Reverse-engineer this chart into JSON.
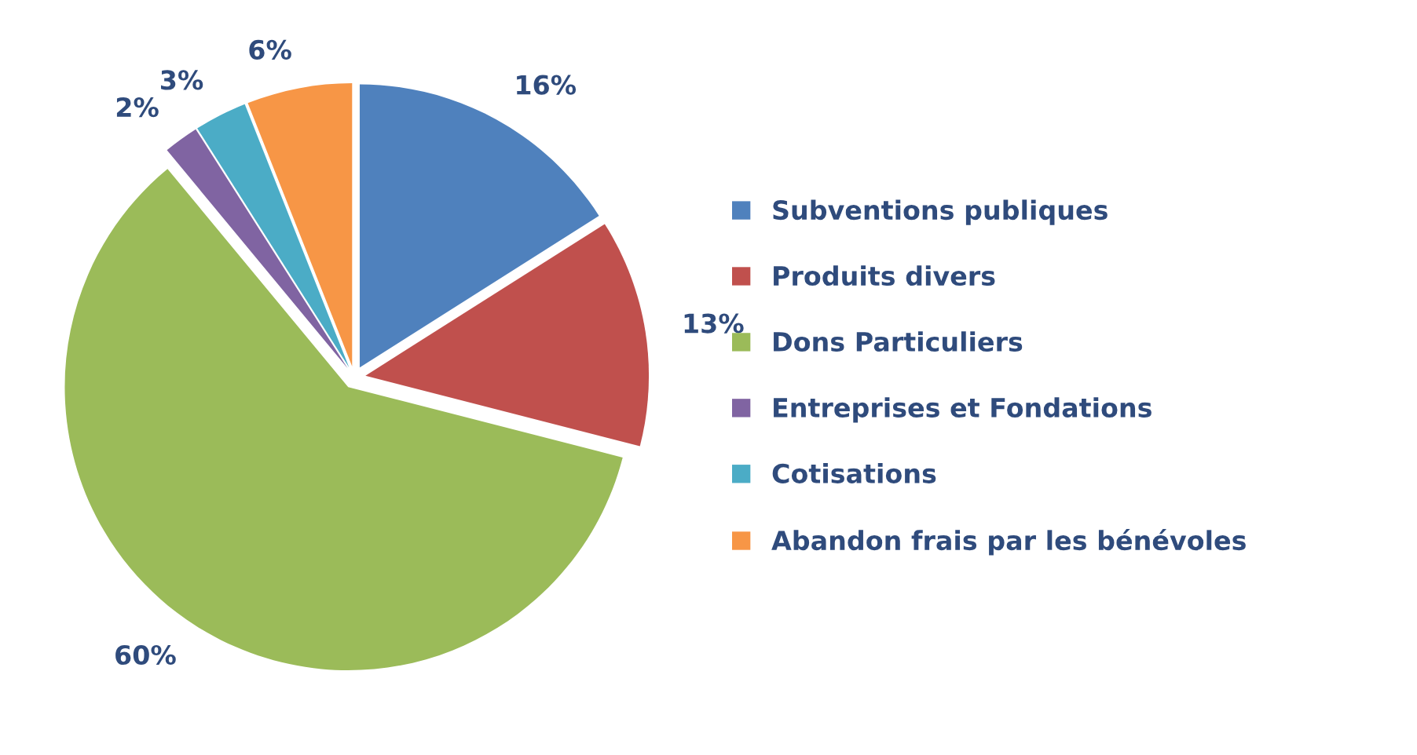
{
  "chart_data": {
    "type": "pie",
    "categories": [
      "Subventions publiques",
      "Produits divers",
      "Dons Particuliers",
      "Entreprises et Fondations",
      "Cotisations",
      "Abandon frais par les bénévoles"
    ],
    "values": [
      16,
      13,
      60,
      2,
      3,
      6
    ],
    "colors": [
      "#4f81bd",
      "#c0504d",
      "#9bbb59",
      "#8064a2",
      "#4bacc6",
      "#f79646"
    ],
    "value_labels": [
      "16%",
      "13%",
      "60%",
      "2%",
      "3%",
      "6%"
    ],
    "legend": "right"
  }
}
